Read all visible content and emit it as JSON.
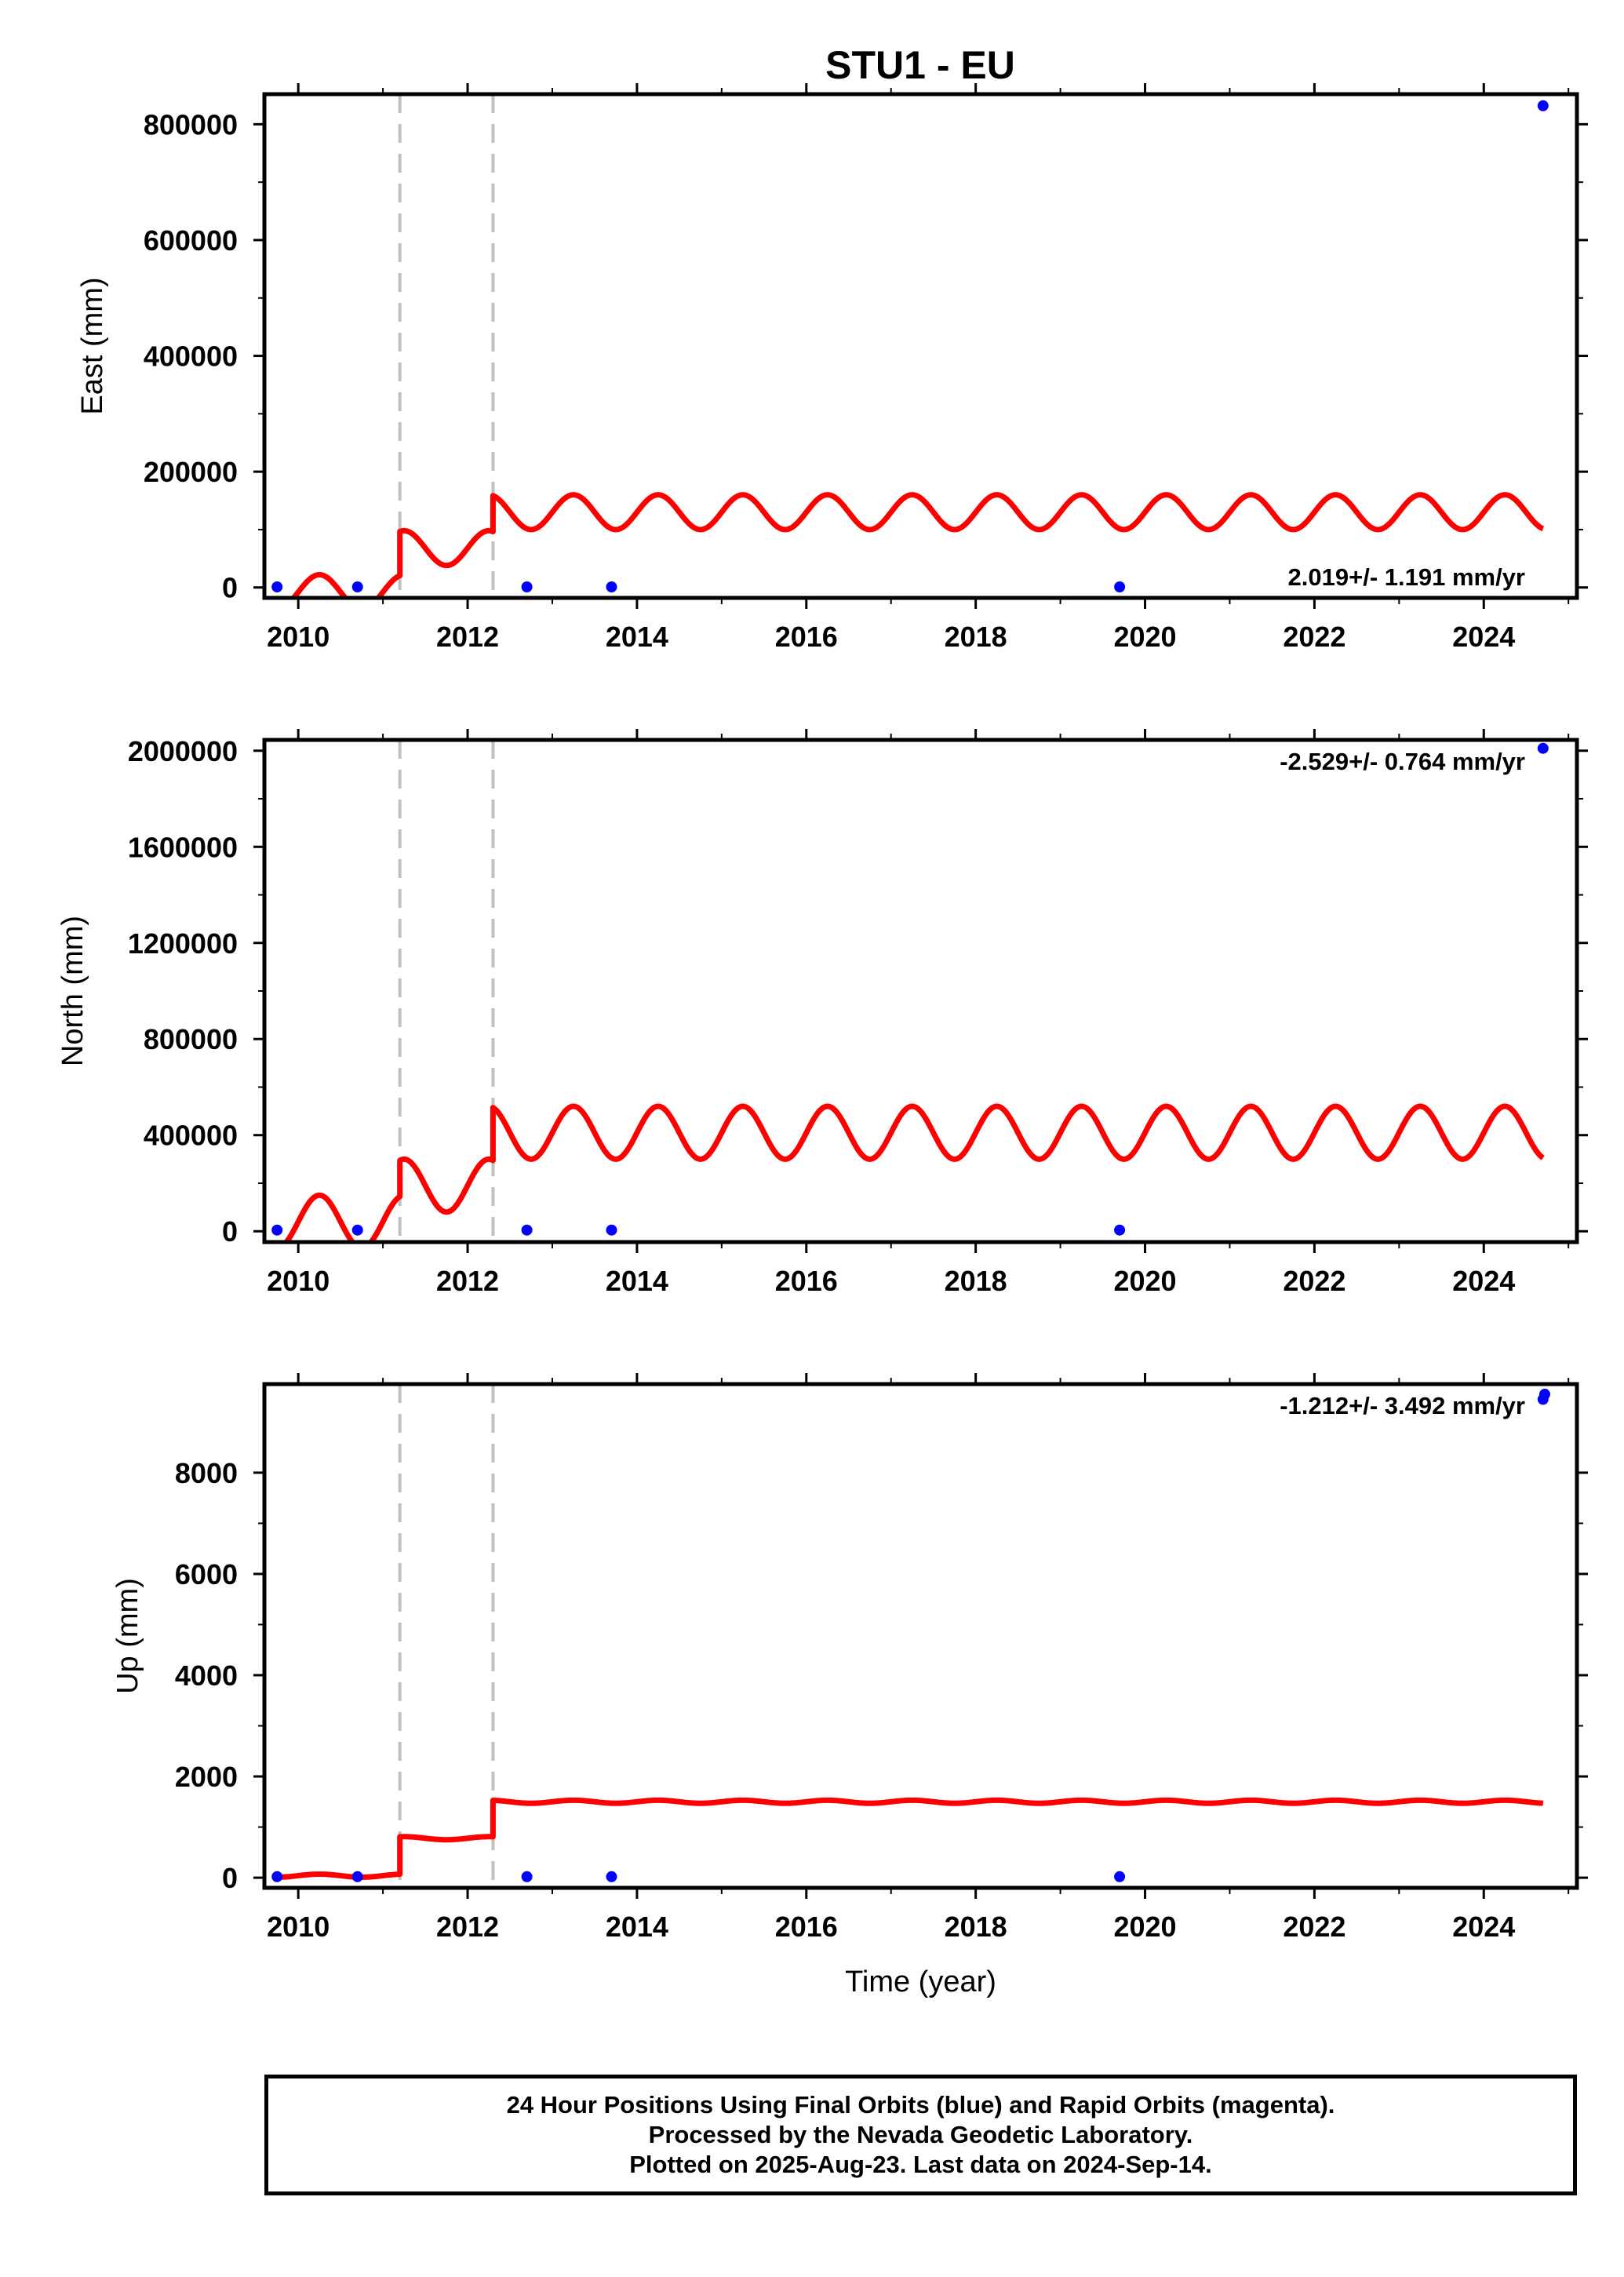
{
  "title": "STU1 - EU",
  "footer": {
    "line1": "24 Hour Positions Using Final Orbits (blue) and Rapid Orbits (magenta).",
    "line2": "Processed by the Nevada Geodetic Laboratory.",
    "line3": "Plotted on 2025-Aug-23. Last data on 2024-Sep-14."
  },
  "colors": {
    "model": "#ff0000",
    "final_orbits": "#0000ff",
    "offset_line": "#c0c0c0"
  },
  "chart_data": [
    {
      "type": "scatter",
      "name": "east",
      "ylabel": "East (mm)",
      "xlabel": "",
      "rate_text": "2.019+/- 1.191 mm/yr",
      "rate_position": "bottom-right",
      "xlim": [
        2009.6,
        2025.1
      ],
      "ylim": [
        -18000,
        852000
      ],
      "yticks": [
        0,
        200000,
        400000,
        600000,
        800000
      ],
      "ytick_labels": [
        "0",
        "200000",
        "400000",
        "600000",
        "800000"
      ],
      "xticks": [
        2010,
        2012,
        2014,
        2016,
        2018,
        2020,
        2022,
        2024
      ],
      "xtick_labels": [
        "2010",
        "2012",
        "2014",
        "2016",
        "2018",
        "2020",
        "2022",
        "2024"
      ],
      "offsets": [
        2011.2,
        2012.3
      ],
      "points": [
        [
          2009.75,
          1000
        ],
        [
          2010.7,
          1000
        ],
        [
          2012.7,
          1000
        ],
        [
          2013.7,
          1000
        ],
        [
          2019.7,
          1000
        ],
        [
          2024.7,
          832000
        ]
      ],
      "model": {
        "x_range": [
          2009.75,
          2024.7
        ],
        "levels": [
          -8000,
          68000,
          130000
        ],
        "amplitude": 30000,
        "period": 1.0
      }
    },
    {
      "type": "scatter",
      "name": "north",
      "ylabel": "North (mm)",
      "xlabel": "",
      "rate_text": "-2.529+/- 0.764 mm/yr",
      "rate_position": "top-right",
      "xlim": [
        2009.6,
        2025.1
      ],
      "ylim": [
        -45000,
        2045000
      ],
      "yticks": [
        0,
        400000,
        800000,
        1200000,
        1600000,
        2000000
      ],
      "ytick_labels": [
        "0",
        "400000",
        "800000",
        "1200000",
        "1600000",
        "2000000"
      ],
      "xticks": [
        2010,
        2012,
        2014,
        2016,
        2018,
        2020,
        2022,
        2024
      ],
      "xtick_labels": [
        "2010",
        "2012",
        "2014",
        "2016",
        "2018",
        "2020",
        "2022",
        "2024"
      ],
      "offsets": [
        2011.2,
        2012.3
      ],
      "points": [
        [
          2009.75,
          5000
        ],
        [
          2010.7,
          5000
        ],
        [
          2012.7,
          5000
        ],
        [
          2013.7,
          5000
        ],
        [
          2019.7,
          5000
        ],
        [
          2024.7,
          2010000
        ]
      ],
      "model": {
        "x_range": [
          2009.75,
          2024.7
        ],
        "levels": [
          40000,
          190000,
          410000
        ],
        "amplitude": 110000,
        "period": 1.0
      }
    },
    {
      "type": "scatter",
      "name": "up",
      "ylabel": "Up (mm)",
      "xlabel": "Time (year)",
      "rate_text": "-1.212+/- 3.492 mm/yr",
      "rate_position": "top-right",
      "xlim": [
        2009.6,
        2025.1
      ],
      "ylim": [
        -200,
        9750
      ],
      "yticks": [
        0,
        2000,
        4000,
        6000,
        8000
      ],
      "ytick_labels": [
        "0",
        "2000",
        "4000",
        "6000",
        "8000"
      ],
      "xticks": [
        2010,
        2012,
        2014,
        2016,
        2018,
        2020,
        2022,
        2024
      ],
      "xtick_labels": [
        "2010",
        "2012",
        "2014",
        "2016",
        "2018",
        "2020",
        "2022",
        "2024"
      ],
      "offsets": [
        2011.2,
        2012.3
      ],
      "points": [
        [
          2009.75,
          20
        ],
        [
          2010.7,
          20
        ],
        [
          2012.7,
          20
        ],
        [
          2013.7,
          20
        ],
        [
          2019.7,
          20
        ],
        [
          2024.7,
          9450
        ],
        [
          2024.72,
          9550
        ]
      ],
      "model": {
        "x_range": [
          2009.75,
          2024.7
        ],
        "levels": [
          40,
          780,
          1500
        ],
        "amplitude": 30,
        "period": 1.0
      }
    }
  ]
}
